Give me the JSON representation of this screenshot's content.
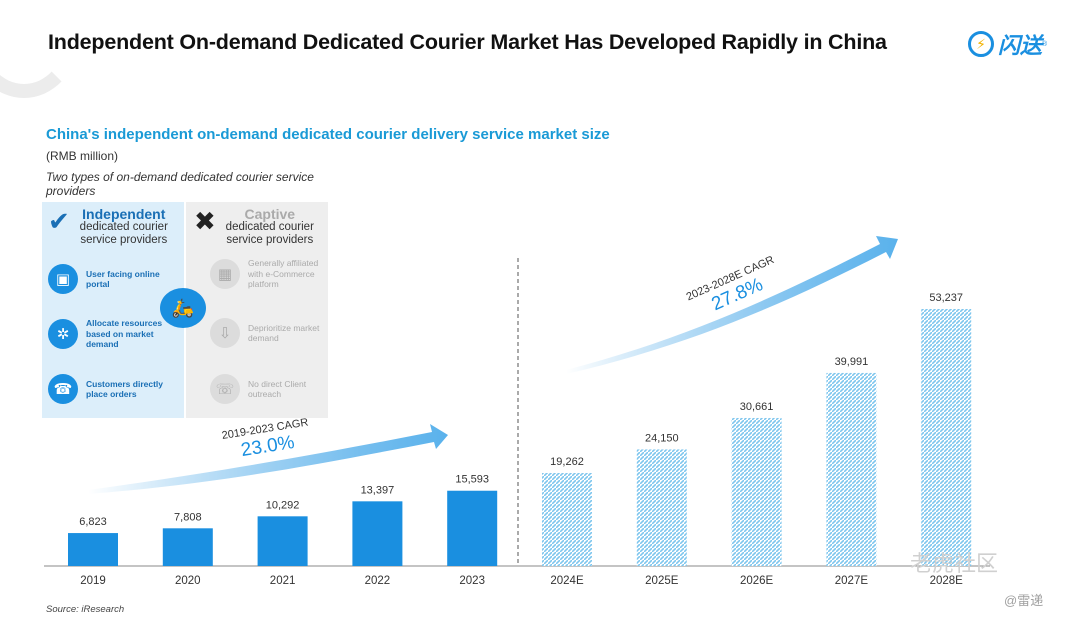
{
  "title": "Independent On-demand Dedicated Courier Market Has Developed Rapidly in China",
  "logo": {
    "text": "闪送",
    "reg": "®",
    "accent": "#1a8fe0"
  },
  "subtitle": "China's independent on-demand dedicated courier delivery service market size",
  "unit": "(RMB million)",
  "types_note": "Two types of on-demand dedicated courier service providers",
  "independent": {
    "heading": "Independent",
    "sub": "dedicated courier service providers",
    "icon": "check-icon",
    "features": [
      "User facing online portal",
      "Allocate resources based on market demand",
      "Customers directly place orders"
    ]
  },
  "captive": {
    "heading": "Captive",
    "sub": "dedicated courier service providers",
    "icon": "cross-icon",
    "features": [
      "Generally affiliated with e-Commerce platform",
      "Deprioritize market demand",
      "No direct Client outreach"
    ]
  },
  "source": "Source: iResearch",
  "watermark": "老虎社区",
  "watermark2": "@雷递",
  "chart_data": {
    "type": "bar",
    "categories": [
      "2019",
      "2020",
      "2021",
      "2022",
      "2023",
      "2024E",
      "2025E",
      "2026E",
      "2027E",
      "2028E"
    ],
    "values": [
      6823,
      7808,
      10292,
      13397,
      15593,
      19262,
      24150,
      30661,
      39991,
      53237
    ],
    "value_labels": [
      "6,823",
      "7,808",
      "10,292",
      "13,397",
      "15,593",
      "19,262",
      "24,150",
      "30,661",
      "39,991",
      "53,237"
    ],
    "historical_color": "#1a8fe0",
    "forecast_color": "#7ec6ee",
    "cagr": [
      {
        "label": "2019-2023 CAGR",
        "value": "23.0%"
      },
      {
        "label": "2023-2028E CAGR",
        "value": "27.8%"
      }
    ],
    "ylabel": "RMB million"
  }
}
